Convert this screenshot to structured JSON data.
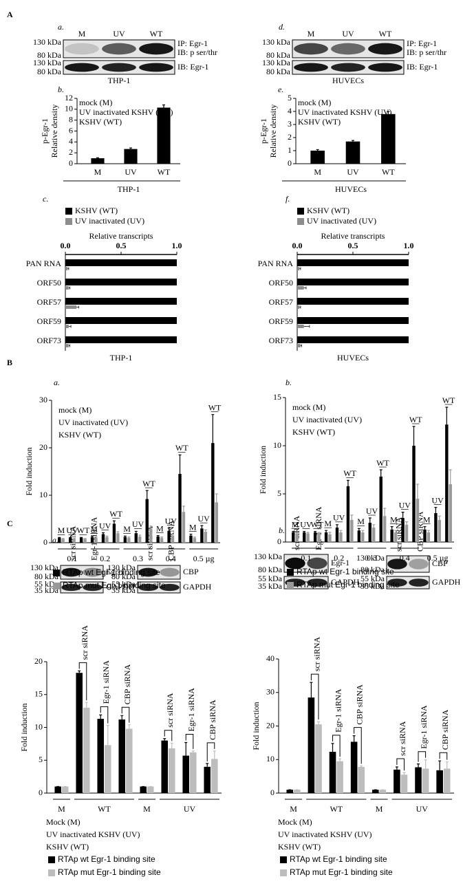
{
  "section_labels": [
    "A",
    "B",
    "C"
  ],
  "blots": [
    {
      "panel": "a.",
      "lanes": [
        "M",
        "UV",
        "WT"
      ],
      "rows": [
        {
          "markers": [
            "130 kDa",
            "80 kDa"
          ],
          "labels": [
            "IP: Egr-1",
            "IB: p ser/thr"
          ]
        },
        {
          "markers": [
            "130 kDa",
            "80 kDa"
          ],
          "labels": [
            "IB: Egr-1"
          ]
        }
      ],
      "caption": "THP-1"
    },
    {
      "panel": "d.",
      "lanes": [
        "M",
        "UV",
        "WT"
      ],
      "rows": [
        {
          "markers": [
            "130 kDa",
            "80 kDa"
          ],
          "labels": [
            "IP: Egr-1",
            "IB: p ser/thr"
          ]
        },
        {
          "markers": [
            "130 kDa",
            "80 kDa"
          ],
          "labels": [
            "IB: Egr-1"
          ]
        }
      ],
      "caption": "HUVECs"
    },
    {
      "panel": "a.",
      "rotate_lane_labels": true,
      "lanes": [
        "scr siRNA",
        "Egr-1 siRNA"
      ],
      "rows": [
        {
          "markers": [
            "130 kDa",
            "80 kDa"
          ],
          "labels": [
            "Egr-1"
          ]
        },
        {
          "markers": [
            "55 kDa",
            "35 kDa"
          ],
          "labels": [
            "GAPDH"
          ]
        }
      ]
    },
    {
      "rotate_lane_labels": true,
      "lanes": [
        "scr siRNA",
        "CBP siRNA"
      ],
      "rows": [
        {
          "markers": [
            "130 kDa",
            "80 kDa"
          ],
          "labels": [
            "CBP"
          ]
        },
        {
          "markers": [
            "55 kDa",
            "35 kDa"
          ],
          "labels": [
            "GAPDH"
          ]
        }
      ]
    },
    {
      "panel": "b.",
      "rotate_lane_labels": true,
      "lanes": [
        "scr siRNA",
        "Egr-1 siRNA"
      ],
      "rows": [
        {
          "markers": [
            "130 kDa",
            "80 kDa"
          ],
          "labels": [
            "Egr-1"
          ]
        },
        {
          "markers": [
            "55 kDa",
            "35 kDa"
          ],
          "labels": [
            "GAPDH"
          ]
        }
      ]
    },
    {
      "rotate_lane_labels": true,
      "lanes": [
        "scr siRNA",
        "CBP siRNA"
      ],
      "rows": [
        {
          "markers": [
            "130 kDa",
            "80 kDa"
          ],
          "labels": [
            "CBP"
          ]
        },
        {
          "markers": [
            "55 kDa",
            "35 kDa"
          ],
          "labels": [
            "GAPDH"
          ]
        }
      ]
    }
  ],
  "chart_data": [
    {
      "type": "bar",
      "panel": "b.",
      "ylabel": [
        "p-Egr-1",
        "Relative density"
      ],
      "notes": [
        "mock (M)",
        "UV inactivated KSHV (UV)",
        "KSHV (WT)"
      ],
      "notes_position": "inside",
      "categories": [
        "M",
        "UV",
        "WT"
      ],
      "series": [
        {
          "color": "#000000",
          "values": [
            1,
            2.7,
            10.3
          ],
          "errors": [
            0.1,
            0.2,
            0.5
          ]
        }
      ],
      "ylim": [
        0,
        12
      ],
      "yticks": [
        0,
        2,
        4,
        6,
        8,
        10,
        12
      ],
      "xlabel": "THP-1"
    },
    {
      "type": "bar",
      "panel": "e.",
      "ylabel": [
        "p-Egr-1",
        "Relative density"
      ],
      "notes": [
        "mock (M)",
        "UV inactivated KSHV (UV)",
        "KSHV (WT)"
      ],
      "notes_position": "inside",
      "categories": [
        "M",
        "UV",
        "WT"
      ],
      "series": [
        {
          "color": "#000000",
          "values": [
            1,
            1.7,
            3.8
          ],
          "errors": [
            0.08,
            0.08,
            0.2
          ]
        }
      ],
      "ylim": [
        0,
        5
      ],
      "yticks": [
        0,
        1,
        2,
        3,
        4,
        5
      ],
      "xlabel": "HUVECs"
    },
    {
      "type": "barh",
      "panel": "c.",
      "xlabel": "Relative transcripts",
      "legend": "top",
      "categories": [
        "PAN RNA",
        "ORF50",
        "ORF57",
        "ORF59",
        "ORF73"
      ],
      "series": [
        {
          "name": "KSHV (WT)",
          "color": "#000000",
          "values": [
            1,
            1,
            1,
            1,
            1
          ]
        },
        {
          "name": "UV inactivated (UV)",
          "color": "#8c8c8c",
          "values": [
            0.02,
            0.03,
            0.1,
            0.03,
            0.03
          ],
          "errors": [
            0.01,
            0.01,
            0.02,
            0.02,
            0.01
          ]
        }
      ],
      "xlim": [
        0,
        1
      ],
      "xticks": [
        {
          "value": 0,
          "label": "0.0"
        },
        {
          "value": 0.5,
          "label": "0.5"
        },
        {
          "value": 1,
          "label": "1.0"
        }
      ],
      "caption": "THP-1"
    },
    {
      "type": "barh",
      "panel": "f.",
      "xlabel": "Relative transcripts",
      "legend": "top",
      "categories": [
        "PAN RNA",
        "ORF50",
        "ORF57",
        "ORF59",
        "ORF73"
      ],
      "series": [
        {
          "name": "KSHV (WT)",
          "color": "#000000",
          "values": [
            1,
            1,
            1,
            1,
            1
          ]
        },
        {
          "name": "UV inactivated (UV)",
          "color": "#8c8c8c",
          "values": [
            0.02,
            0.06,
            0.02,
            0.06,
            0.03
          ],
          "errors": [
            0.01,
            0.02,
            0.01,
            0.05,
            0.01
          ]
        }
      ],
      "xlim": [
        0,
        1
      ],
      "xticks": [
        {
          "value": 0,
          "label": "0.0"
        },
        {
          "value": 0.5,
          "label": "0.5"
        },
        {
          "value": 1,
          "label": "1.0"
        }
      ],
      "caption": "HUVECs"
    },
    {
      "type": "bar",
      "panel": "a.",
      "ylabel": "Fold induction",
      "notes": [
        "mock (M)",
        "UV inactivated (UV)",
        "KSHV (WT)"
      ],
      "notes_position": "inside",
      "legend": "bottom",
      "groups": [
        {
          "label": "0.1",
          "categories": [
            "M",
            "UV",
            "WT"
          ]
        },
        {
          "label": "0.2",
          "categories": [
            "M",
            "UV",
            "WT"
          ]
        },
        {
          "label": "0.3",
          "categories": [
            "M",
            "UV",
            "WT"
          ]
        },
        {
          "label": "0.4",
          "categories": [
            "M",
            "UV",
            "WT"
          ]
        },
        {
          "label": "0.5 µg",
          "categories": [
            "M",
            "UV",
            "WT"
          ]
        }
      ],
      "series": [
        {
          "name": "RTAp wt Egr-1 binding site",
          "color": "#000000",
          "values": [
            1,
            1,
            1,
            1.2,
            1.8,
            4,
            1.2,
            2,
            9.2,
            1.3,
            2.5,
            14.5,
            1.5,
            3,
            21
          ],
          "errors": [
            0.1,
            0.1,
            0.1,
            0.2,
            0.3,
            0.6,
            0.2,
            0.4,
            1.8,
            0.2,
            0.6,
            4,
            0.3,
            0.6,
            6
          ]
        },
        {
          "name": "RTAp mut Egr-1 binding site",
          "color": "#9a9a9a",
          "values": [
            0.8,
            0.8,
            0.8,
            1,
            1.2,
            2,
            1,
            1.3,
            3,
            1,
            1.5,
            6.5,
            1,
            2.3,
            8.5
          ],
          "errors": [
            0.1,
            0.1,
            0.1,
            0.2,
            0.2,
            0.3,
            0.2,
            0.3,
            0.5,
            0.2,
            0.3,
            1.2,
            0.2,
            0.4,
            1.8
          ]
        }
      ],
      "ylim": [
        0,
        30
      ],
      "yticks": [
        0,
        10,
        20,
        30
      ]
    },
    {
      "type": "bar",
      "panel": "b.",
      "ylabel": "Fold induction",
      "notes": [
        "mock (M)",
        "UV inactivated (UV)",
        "KSHV (WT)"
      ],
      "notes_position": "inside",
      "legend": "bottom",
      "groups": [
        {
          "label": "0.1",
          "categories": [
            "M",
            "UV",
            "WT"
          ]
        },
        {
          "label": "0.2",
          "categories": [
            "M",
            "UV",
            "WT"
          ]
        },
        {
          "label": "0.3",
          "categories": [
            "M",
            "UV",
            "WT"
          ]
        },
        {
          "label": "0.4",
          "categories": [
            "M",
            "UV",
            "WT"
          ]
        },
        {
          "label": "0.5 µg",
          "categories": [
            "M",
            "UV",
            "WT"
          ]
        }
      ],
      "series": [
        {
          "name": "RTAp wt Egr-1 binding site",
          "color": "#000000",
          "values": [
            1,
            1,
            1,
            1,
            1.5,
            5.8,
            1.2,
            2,
            6.8,
            1.3,
            2.5,
            10,
            1.3,
            3,
            12.2
          ],
          "errors": [
            0.1,
            0.1,
            0.1,
            0.2,
            0.3,
            0.6,
            0.2,
            0.5,
            0.7,
            0.3,
            0.6,
            2,
            0.3,
            0.6,
            1.8
          ]
        },
        {
          "name": "RTAp mut Egr-1 binding site",
          "color": "#9a9a9a",
          "values": [
            0.9,
            0.9,
            0.9,
            0.8,
            1,
            2.3,
            1,
            1.5,
            2.7,
            1,
            1.8,
            4.5,
            1,
            2.3,
            6
          ],
          "errors": [
            0.1,
            0.1,
            0.1,
            0.2,
            0.2,
            0.5,
            0.2,
            0.3,
            0.8,
            0.2,
            0.3,
            1.5,
            0.2,
            0.4,
            1.5
          ]
        }
      ],
      "ylim": [
        0,
        15
      ],
      "yticks": [
        0,
        5,
        10,
        15
      ]
    },
    {
      "type": "bar",
      "ylabel": "Fold induction",
      "rotate_category_labels": true,
      "notes": [
        "Mock (M)",
        "UV inactivated KSHV (UV)",
        "KSHV (WT)"
      ],
      "notes_position": "below",
      "legend": "bottom",
      "groups": [
        {
          "label": "M",
          "categories": [
            null
          ]
        },
        {
          "label": "WT",
          "categories": [
            "scr siRNA",
            "Egr-1 siRNA",
            "CBP siRNA"
          ]
        },
        {
          "label": "M",
          "categories": [
            null
          ]
        },
        {
          "label": "UV",
          "categories": [
            "scr siRNA",
            "Egr-1 siRNA",
            "CBP siRNA"
          ]
        }
      ],
      "series": [
        {
          "name": "RTAp wt Egr-1 binding site",
          "color": "#000000",
          "values": [
            1,
            18.3,
            11.3,
            11.2,
            1,
            8,
            5.7,
            4
          ],
          "errors": [
            0,
            0.3,
            0.6,
            0.6,
            0,
            0.3,
            2,
            0.5
          ]
        },
        {
          "name": "RTAp mut Egr-1 binding site",
          "color": "#bdbdbd",
          "values": [
            1,
            13,
            7.3,
            9.8,
            1,
            6.8,
            6.2,
            5.2
          ],
          "errors": [
            0,
            0.8,
            3,
            0.6,
            0,
            0.8,
            0.2,
            1.2
          ]
        }
      ],
      "ylim": [
        0,
        20
      ],
      "yticks": [
        0,
        5,
        10,
        15,
        20
      ]
    },
    {
      "type": "bar",
      "ylabel": "Fold induction",
      "rotate_category_labels": true,
      "notes": [
        "Mock (M)",
        "UV inactivated KSHV (UV)",
        "KSHV (WT)"
      ],
      "notes_position": "below",
      "legend": "bottom",
      "groups": [
        {
          "label": "M",
          "categories": [
            null
          ]
        },
        {
          "label": "WT",
          "categories": [
            "scr siRNA",
            "Egr-1 siRNA",
            "CBP siRNA"
          ]
        },
        {
          "label": "M",
          "categories": [
            null
          ]
        },
        {
          "label": "UV",
          "categories": [
            "scr siRNA",
            "Egr-1 siRNA",
            "CBP siRNA"
          ]
        }
      ],
      "series": [
        {
          "name": "RTAp wt Egr-1 binding site",
          "color": "#000000",
          "values": [
            1,
            28.5,
            12.3,
            15.3,
            1,
            7,
            7.7,
            6.8
          ],
          "errors": [
            0,
            4.5,
            2.5,
            1.8,
            0,
            0.8,
            1,
            2.8
          ]
        },
        {
          "name": "RTAp mut Egr-1 binding site",
          "color": "#bdbdbd",
          "values": [
            1,
            20.5,
            9.5,
            7.8,
            1,
            5.5,
            7.3,
            7.3
          ],
          "errors": [
            0,
            0.8,
            0.7,
            0.3,
            0,
            0.6,
            2.6,
            2
          ]
        }
      ],
      "ylim": [
        0,
        40
      ],
      "yticks": [
        0,
        10,
        20,
        30,
        40
      ]
    }
  ]
}
